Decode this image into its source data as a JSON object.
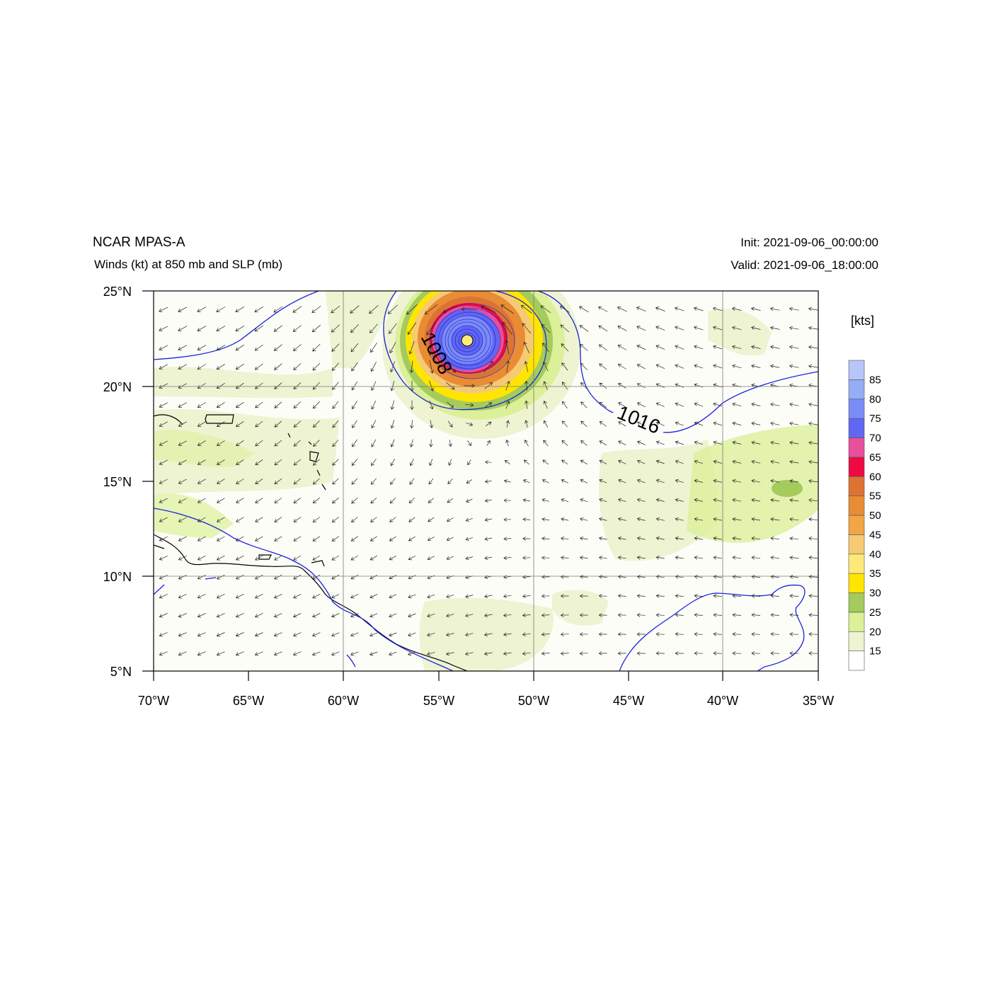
{
  "header": {
    "model": "NCAR MPAS-A",
    "subtitle": "Winds (kt) at 850 mb and SLP (mb)",
    "init": "Init: 2021-09-06_00:00:00",
    "valid": "Valid: 2021-09-06_18:00:00"
  },
  "map": {
    "lon_ticks": [
      "70°W",
      "65°W",
      "60°W",
      "55°W",
      "50°W",
      "45°W",
      "40°W",
      "35°W"
    ],
    "lat_ticks": [
      "25°N",
      "20°N",
      "15°N",
      "10°N",
      "5°N"
    ],
    "lon_range": [
      -70,
      -35
    ],
    "lat_range": [
      5,
      25
    ],
    "contour_labels": [
      "1008",
      "1016"
    ],
    "storm_center": {
      "lon": -53.5,
      "lat": 22.4
    }
  },
  "colorbar": {
    "units": "[kts]",
    "levels": [
      "15",
      "20",
      "25",
      "30",
      "35",
      "40",
      "45",
      "50",
      "55",
      "60",
      "65",
      "70",
      "75",
      "80",
      "85"
    ],
    "colors": [
      "#ffffff",
      "#eef3d2",
      "#dcef99",
      "#a4cb5c",
      "#ffe500",
      "#fde87a",
      "#f6ca73",
      "#f1a544",
      "#e98c35",
      "#dc7333",
      "#ee0b43",
      "#e84f9c",
      "#6166f3",
      "#7b8cf6",
      "#94adf6",
      "#b7c6f9"
    ]
  }
}
